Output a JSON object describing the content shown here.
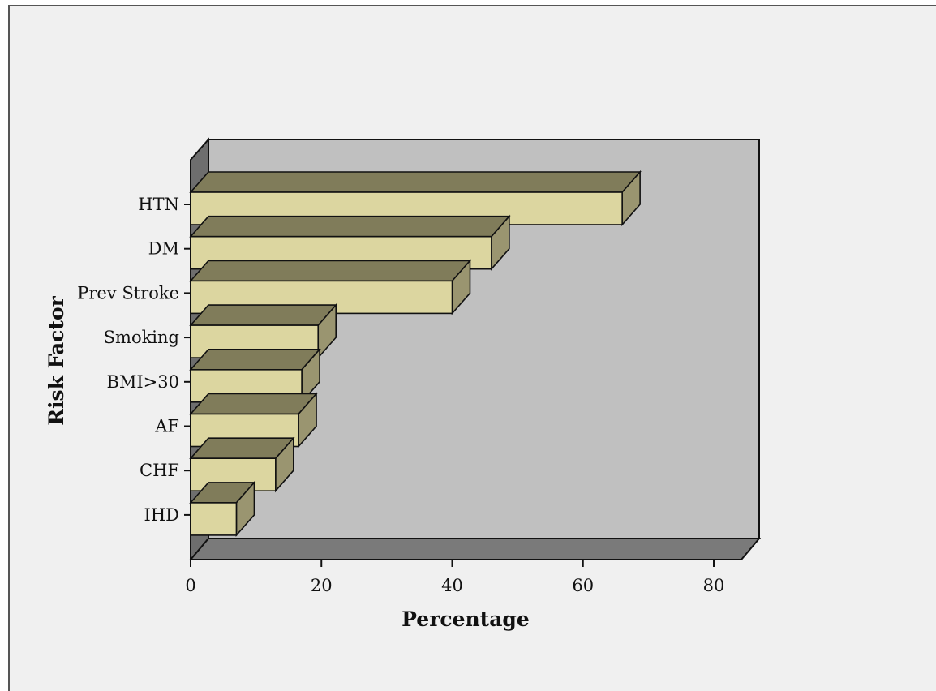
{
  "chart_data": {
    "type": "bar",
    "orientation": "horizontal",
    "style": "3d",
    "xlabel": "Percentage",
    "ylabel": "Risk Factor",
    "categories": [
      "HTN",
      "DM",
      "Prev Stroke",
      "Smoking",
      "BMI>30",
      "AF",
      "CHF",
      "IHD"
    ],
    "values": [
      66,
      46,
      40,
      19.5,
      17,
      16.5,
      13,
      7
    ],
    "xlim": [
      0,
      80
    ],
    "x_ticks": [
      0,
      20,
      40,
      60,
      80
    ],
    "grid": false,
    "legend": "none"
  },
  "colors": {
    "bar_front": "#dcd6a0",
    "bar_top": "#807c5a",
    "bar_side": "#9a9570",
    "plot_back": "#c0c0c0",
    "plot_floor": "#7a7a7a",
    "plot_left_wall": "#6e6e6e",
    "outline": "#111111"
  }
}
